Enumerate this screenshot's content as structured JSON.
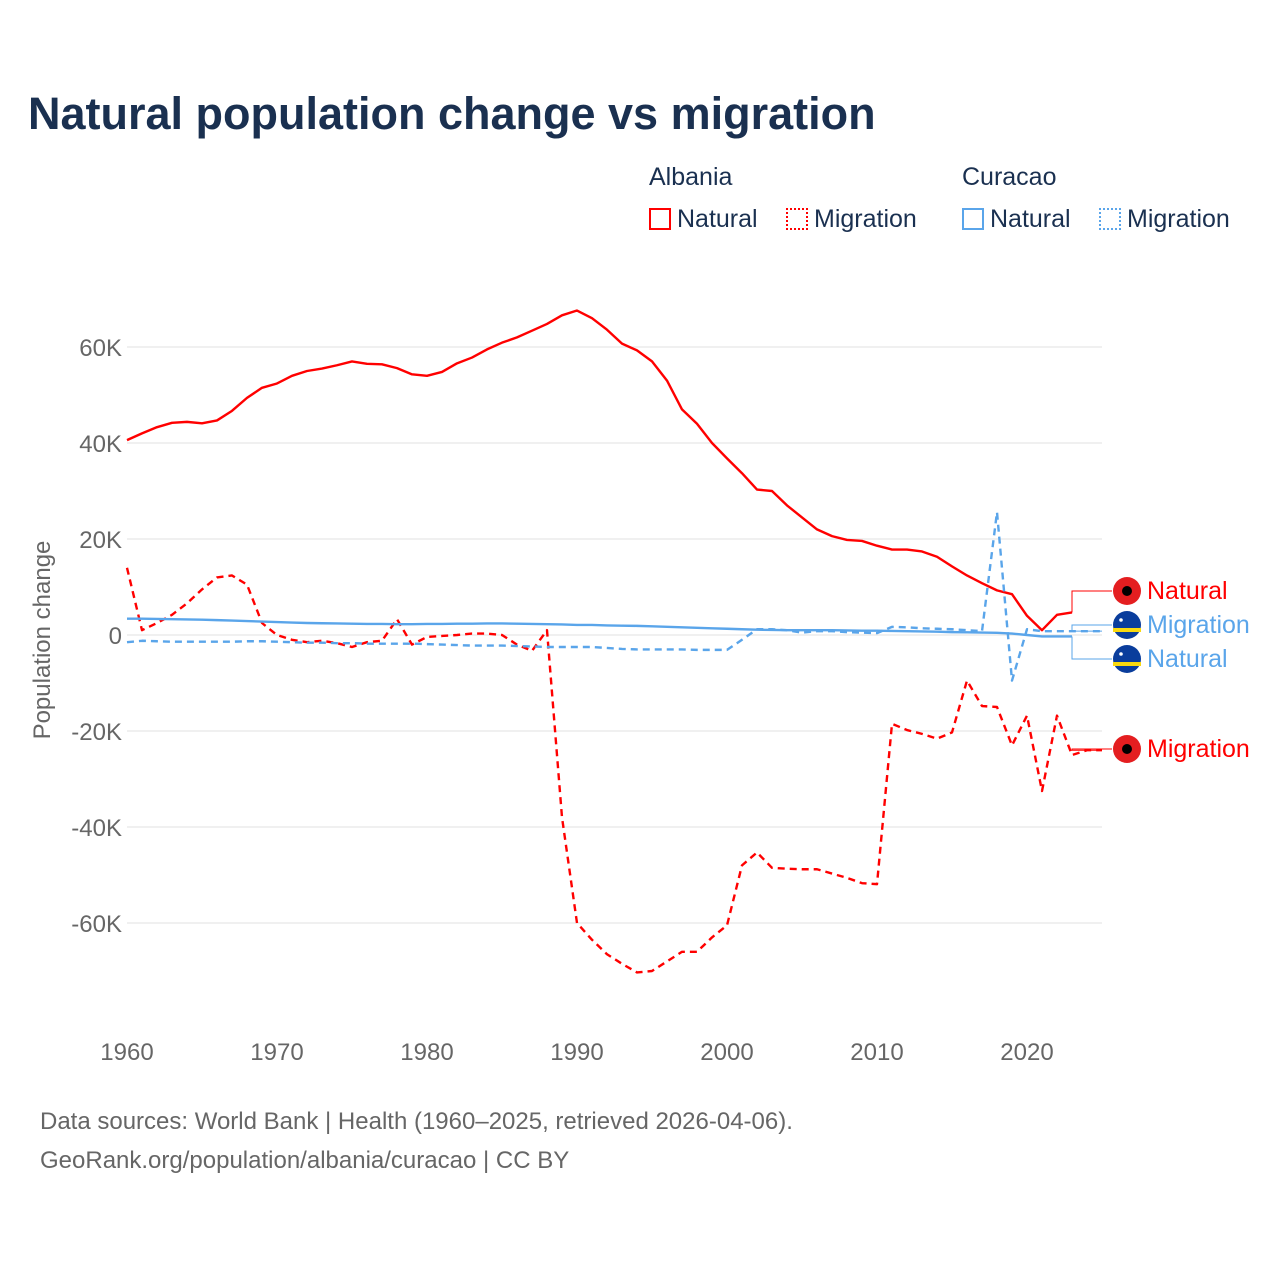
{
  "title": "Natural population change vs migration",
  "legend": {
    "groups": [
      {
        "name": "Albania",
        "items": [
          "Natural",
          "Migration"
        ],
        "color": "#ff0000"
      },
      {
        "name": "Curacao",
        "items": [
          "Natural",
          "Migration"
        ],
        "color": "#5aa5ea"
      }
    ]
  },
  "footer": [
    "Data sources: World Bank | Health (1960–2025, retrieved 2026-04-06).",
    "GeoRank.org/population/albania/curacao | CC BY"
  ],
  "chart_data": {
    "type": "line",
    "title": "Natural population change vs migration",
    "xlabel": "",
    "ylabel": "Population change",
    "xlim": [
      1960,
      2025
    ],
    "ylim": [
      -80000,
      72000
    ],
    "xticks": [
      1960,
      1970,
      1980,
      1990,
      2000,
      2010,
      2020
    ],
    "yticks": [
      {
        "v": 60000,
        "label": "60K"
      },
      {
        "v": 40000,
        "label": "40K"
      },
      {
        "v": 20000,
        "label": "20K"
      },
      {
        "v": 0,
        "label": "0"
      },
      {
        "v": -20000,
        "label": "-20K"
      },
      {
        "v": -40000,
        "label": "-40K"
      },
      {
        "v": -60000,
        "label": "-60K"
      }
    ],
    "grid": true,
    "series": [
      {
        "name": "Albania Natural",
        "end_label": "Natural",
        "color": "#ff0000",
        "dashed": false,
        "flag": "albania",
        "start": 1960,
        "values": [
          40.6,
          42,
          43.3,
          44.2,
          44.4,
          44.1,
          44.7,
          46.7,
          49.4,
          51.5,
          52.4,
          54,
          55,
          55.5,
          56.2,
          57,
          56.5,
          56.4,
          55.6,
          54.3,
          54,
          54.8,
          56.6,
          57.8,
          59.5,
          60.9,
          62,
          63.4,
          64.8,
          66.6,
          67.6,
          66,
          63.6,
          60.7,
          59.3,
          57,
          53,
          47,
          44,
          40,
          36.8,
          33.7,
          30.3,
          30,
          27,
          24.5,
          22,
          20.6,
          19.8,
          19.6,
          18.6,
          17.8,
          17.8,
          17.4,
          16.3,
          14.3,
          12.4,
          10.8,
          9.3,
          8.5,
          4,
          1,
          4.2,
          4.7
        ]
      },
      {
        "name": "Albania Migration",
        "end_label": "Migration",
        "color": "#ff0000",
        "dashed": true,
        "flag": "albania",
        "start": 1960,
        "values": [
          14,
          1,
          2.5,
          4.2,
          6.6,
          9.5,
          12,
          12.4,
          10.5,
          2.5,
          0,
          -1,
          -1.5,
          -1.2,
          -1.7,
          -2.5,
          -1.5,
          -1.2,
          3.3,
          -2,
          -0.4,
          -0.2,
          0,
          0.3,
          0.3,
          0,
          -2,
          -3.3,
          1,
          -38,
          -60,
          -63.5,
          -66.5,
          -68.5,
          -70.3,
          -70,
          -68,
          -66,
          -66,
          -63,
          -60.5,
          -48,
          -45.3,
          -48.5,
          -48.7,
          -48.8,
          -48.8,
          -49.7,
          -50.6,
          -51.7,
          -51.9,
          -18.5,
          -19.8,
          -20.6,
          -21.6,
          -20.3,
          -9.5,
          -14.8,
          -15,
          -23,
          -16.8,
          -32.5,
          -16.8,
          -25,
          -24,
          -24
        ]
      },
      {
        "name": "Curacao Natural",
        "end_label": "Natural",
        "color": "#5aa5ea",
        "dashed": false,
        "flag": "curacao",
        "start": 1960,
        "values": [
          3.4,
          3.4,
          3.35,
          3.3,
          3.25,
          3.2,
          3.1,
          3.0,
          2.9,
          2.8,
          2.7,
          2.6,
          2.5,
          2.45,
          2.4,
          2.35,
          2.3,
          2.3,
          2.25,
          2.25,
          2.3,
          2.3,
          2.35,
          2.35,
          2.4,
          2.4,
          2.35,
          2.3,
          2.25,
          2.2,
          2.1,
          2.1,
          2.0,
          1.95,
          1.9,
          1.8,
          1.7,
          1.6,
          1.5,
          1.4,
          1.3,
          1.2,
          1.1,
          1.05,
          1.0,
          1.0,
          1.0,
          1.0,
          0.95,
          0.9,
          0.9,
          0.85,
          0.8,
          0.75,
          0.7,
          0.6,
          0.55,
          0.5,
          0.45,
          0.3,
          0,
          -0.3,
          -0.3,
          -0.3
        ]
      },
      {
        "name": "Curacao Migration",
        "end_label": "Migration",
        "color": "#5aa5ea",
        "dashed": true,
        "flag": "curacao",
        "start": 1960,
        "values": [
          -1.5,
          -1.2,
          -1.3,
          -1.4,
          -1.4,
          -1.4,
          -1.4,
          -1.4,
          -1.3,
          -1.3,
          -1.4,
          -1.5,
          -1.6,
          -1.6,
          -1.7,
          -1.7,
          -1.8,
          -1.8,
          -1.8,
          -1.8,
          -1.9,
          -2,
          -2.1,
          -2.2,
          -2.2,
          -2.2,
          -2.3,
          -2.4,
          -2.5,
          -2.5,
          -2.5,
          -2.5,
          -2.7,
          -2.9,
          -3,
          -3,
          -3,
          -3,
          -3.1,
          -3.1,
          -3.1,
          -1,
          1.2,
          1.2,
          1,
          0.5,
          0.8,
          0.8,
          0.6,
          0.5,
          0.4,
          1.7,
          1.6,
          1.4,
          1.3,
          1.2,
          1,
          0.8,
          25.6,
          -9.5,
          1.2,
          0.8,
          0.8,
          0.8,
          0.8,
          0.8
        ]
      }
    ]
  }
}
